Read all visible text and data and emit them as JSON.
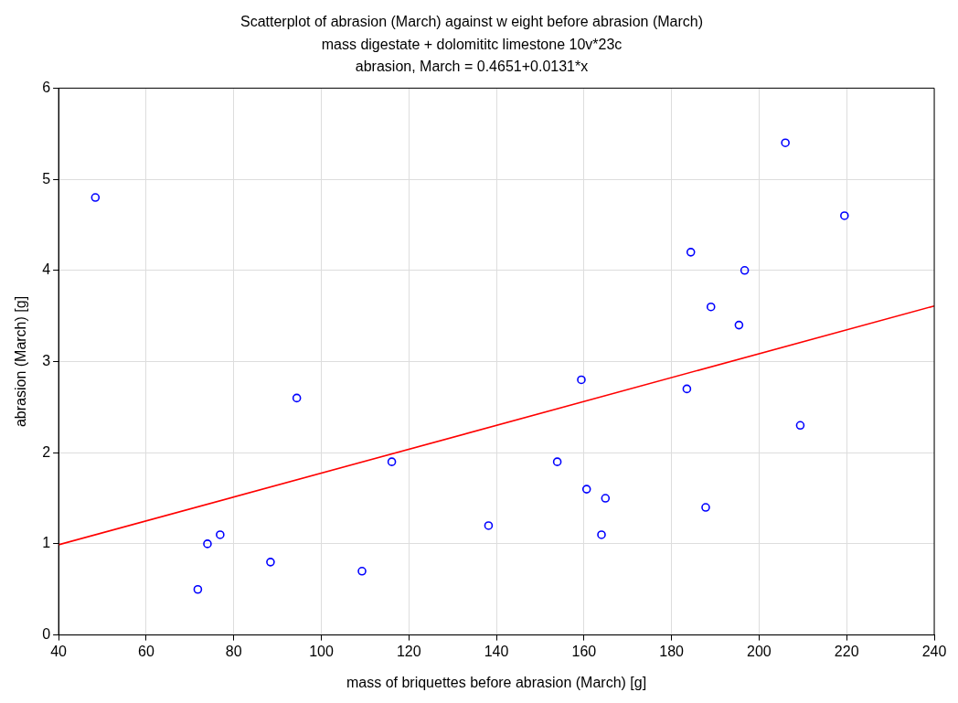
{
  "chart_data": {
    "type": "scatter",
    "title": "Scatterplot of abrasion (March) against w eight before abrasion (March)",
    "subtitle": "mass digestate + dolomititc limestone 10v*23c",
    "annotations": [
      "abrasion, March = 0.4651+0.0131*x"
    ],
    "xlabel": "mass of briquettes before abrasion (March) [g]",
    "ylabel": "abrasion (March) [g]",
    "series": [
      {
        "marker": "circle",
        "color": "#0000ff",
        "x": [
          48.4,
          71.8,
          74.0,
          76.9,
          88.4,
          94.4,
          109.3,
          116.1,
          138.2,
          153.9,
          159.4,
          160.6,
          164.0,
          164.9,
          183.5,
          184.4,
          187.8,
          189.0,
          195.4,
          196.7,
          206.0,
          209.4,
          219.5
        ],
        "values": [
          4.8,
          0.5,
          1.0,
          1.1,
          0.8,
          2.6,
          0.7,
          1.9,
          1.2,
          1.9,
          2.8,
          1.6,
          1.1,
          1.5,
          2.7,
          4.2,
          1.4,
          3.6,
          3.4,
          4.0,
          5.4,
          2.3,
          4.6
        ]
      },
      {
        "type": "line",
        "color": "#ff0000",
        "x": [
          40,
          240
        ],
        "values": [
          0.99,
          3.61
        ]
      }
    ],
    "xlim": [
      40,
      240
    ],
    "xticks": [
      40,
      60,
      80,
      100,
      120,
      140,
      160,
      180,
      200,
      220,
      240
    ],
    "ylim": [
      0,
      6
    ],
    "yticks": [
      0,
      1,
      2,
      3,
      4,
      5,
      6
    ],
    "grid": true
  }
}
